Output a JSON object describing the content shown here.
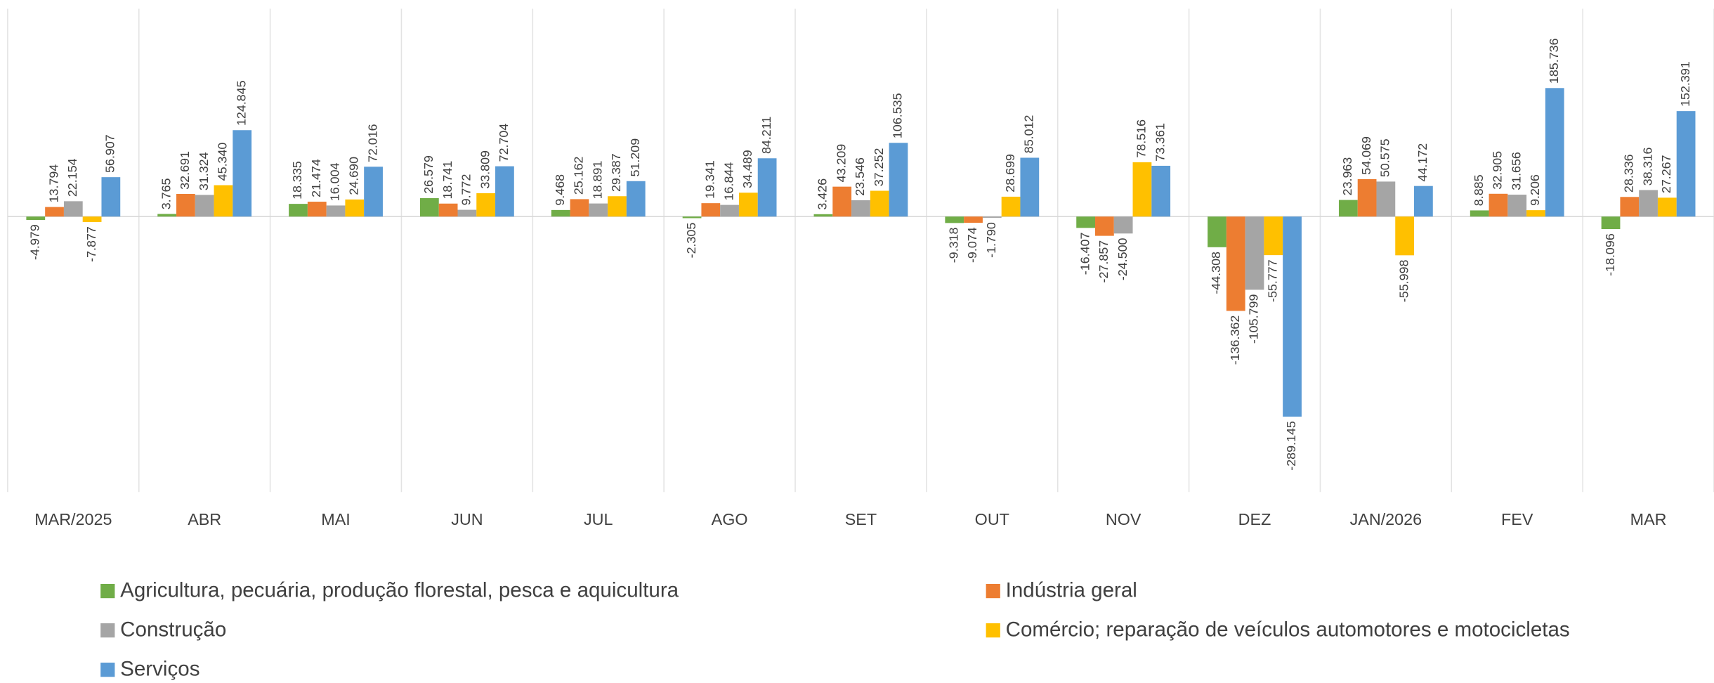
{
  "chart_data": {
    "type": "bar",
    "categories": [
      "MAR/2025",
      "ABR",
      "MAI",
      "JUN",
      "JUL",
      "AGO",
      "SET",
      "OUT",
      "NOV",
      "DEZ",
      "JAN/2026",
      "FEV",
      "MAR"
    ],
    "series": [
      {
        "name": "Agricultura, pecuária, produção florestal, pesca e aquicultura",
        "color": "#70ad47",
        "values": [
          -4979,
          3765,
          18335,
          26579,
          9468,
          -2305,
          3426,
          -9318,
          -16407,
          -44308,
          23963,
          8885,
          -18096
        ],
        "value_labels": [
          "-4.979",
          "3.765",
          "18.335",
          "26.579",
          "9.468",
          "-2.305",
          "3.426",
          "-9.318",
          "-16.407",
          "-44.308",
          "23.963",
          "8.885",
          "-18.096"
        ]
      },
      {
        "name": "Indústria geral",
        "color": "#ed7d31",
        "values": [
          13794,
          32691,
          21474,
          18741,
          25162,
          19341,
          43209,
          -9074,
          -27857,
          -136362,
          54069,
          32905,
          28336
        ],
        "value_labels": [
          "13.794",
          "32.691",
          "21.474",
          "18.741",
          "25.162",
          "19.341",
          "43.209",
          "-9.074",
          "-27.857",
          "-136.362",
          "54.069",
          "32.905",
          "28.336"
        ]
      },
      {
        "name": "Construção",
        "color": "#a5a5a5",
        "values": [
          22154,
          31324,
          16004,
          9772,
          18891,
          16844,
          23546,
          -1790,
          -24500,
          -105799,
          50575,
          31656,
          38316
        ],
        "value_labels": [
          "22.154",
          "31.324",
          "16.004",
          "9.772",
          "18.891",
          "16.844",
          "23.546",
          "-1.790",
          "-24.500",
          "-105.799",
          "50.575",
          "31.656",
          "38.316"
        ]
      },
      {
        "name": "Comércio; reparação de veículos automotores e motocicletas",
        "color": "#ffc000",
        "values": [
          -7877,
          45340,
          24690,
          33809,
          29387,
          34489,
          37252,
          28699,
          78516,
          -55777,
          -55998,
          9206,
          27267
        ],
        "value_labels": [
          "-7.877",
          "45.340",
          "24.690",
          "33.809",
          "29.387",
          "34.489",
          "37.252",
          "28.699",
          "78.516",
          "-55.777",
          "-55.998",
          "9.206",
          "27.267"
        ]
      },
      {
        "name": "Serviços",
        "color": "#5b9bd5",
        "values": [
          56907,
          124845,
          72016,
          72704,
          51209,
          84211,
          106535,
          85012,
          73361,
          -289145,
          44172,
          185736,
          152391
        ],
        "value_labels": [
          "56.907",
          "124.845",
          "72.016",
          "72.704",
          "51.209",
          "84.211",
          "106.535",
          "85.012",
          "73.361",
          "-289.145",
          "44.172",
          "185.736",
          "152.391"
        ]
      }
    ]
  }
}
